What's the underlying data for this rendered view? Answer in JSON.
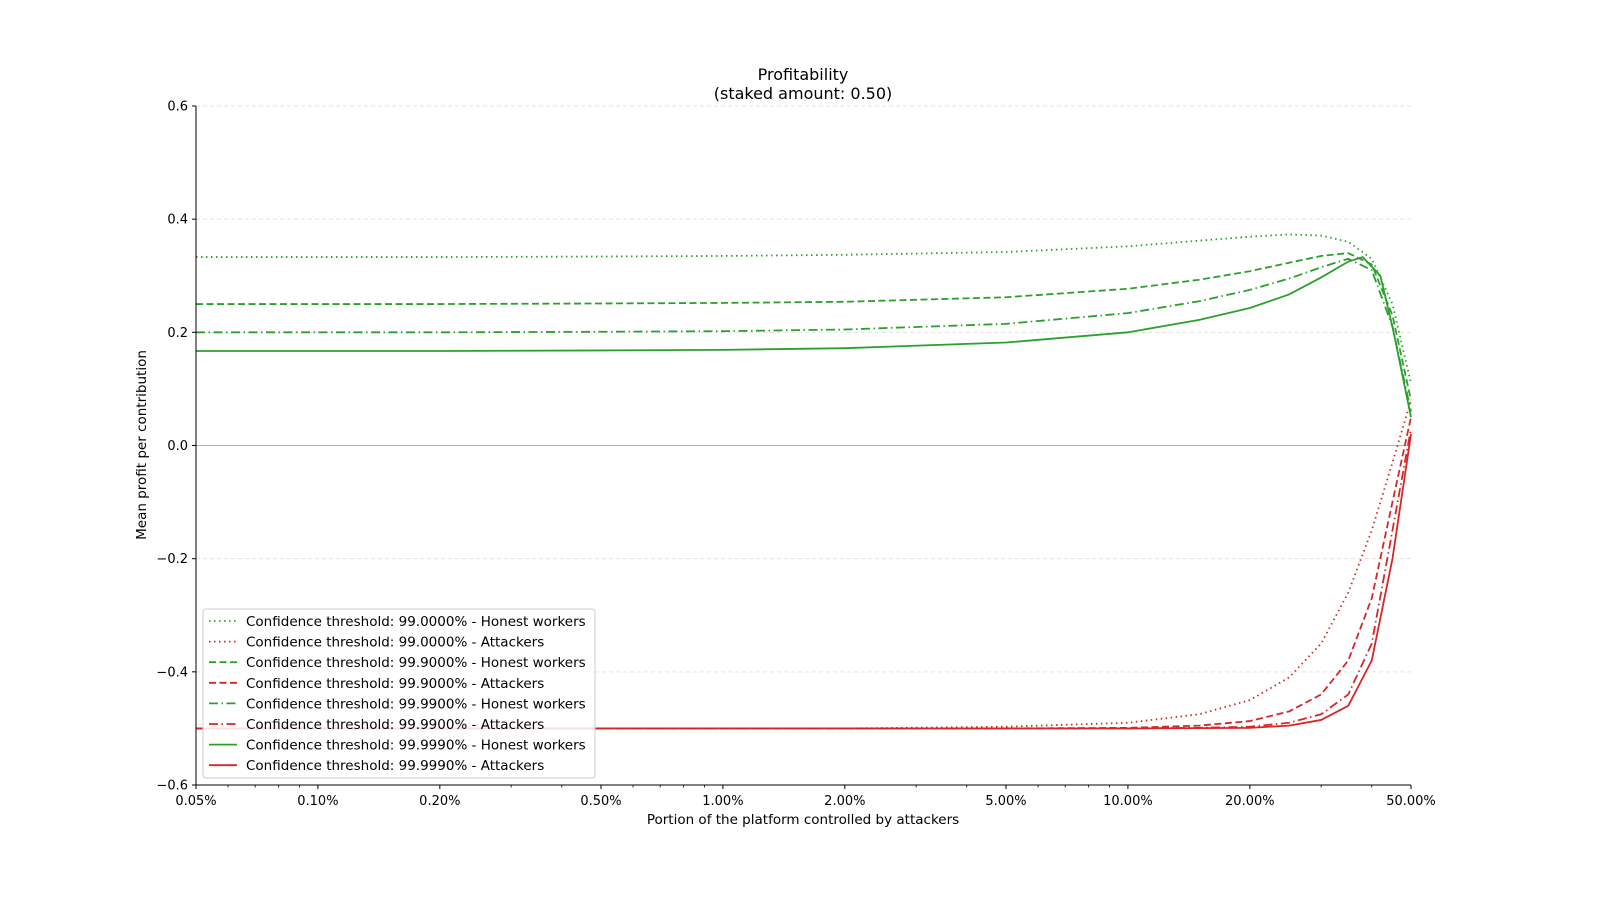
{
  "chart_data": {
    "type": "line",
    "title": "Profitability",
    "subtitle": "(staked amount: 0.50)",
    "xlabel": "Portion of the platform controlled by attackers",
    "ylabel": "Mean profit per contribution",
    "x_scale": "log",
    "xlim": [
      0.0005,
      0.5
    ],
    "ylim": [
      -0.6,
      0.6
    ],
    "grid": "horizontal dashed",
    "legend_position": "lower-left",
    "x_ticks": [
      {
        "value": 0.0005,
        "label": "0.05%"
      },
      {
        "value": 0.001,
        "label": "0.10%"
      },
      {
        "value": 0.002,
        "label": "0.20%"
      },
      {
        "value": 0.005,
        "label": "0.50%"
      },
      {
        "value": 0.01,
        "label": "1.00%"
      },
      {
        "value": 0.02,
        "label": "2.00%"
      },
      {
        "value": 0.05,
        "label": "5.00%"
      },
      {
        "value": 0.1,
        "label": "10.00%"
      },
      {
        "value": 0.2,
        "label": "20.00%"
      },
      {
        "value": 0.5,
        "label": "50.00%"
      }
    ],
    "y_ticks": [
      {
        "value": 0.6,
        "label": "0.6"
      },
      {
        "value": 0.4,
        "label": "0.4"
      },
      {
        "value": 0.2,
        "label": "0.2"
      },
      {
        "value": 0.0,
        "label": "0.0"
      },
      {
        "value": -0.2,
        "label": "−0.2"
      },
      {
        "value": -0.4,
        "label": "−0.4"
      },
      {
        "value": -0.6,
        "label": "−0.6"
      }
    ],
    "colors": {
      "honest": "#2ca02c",
      "attackers": "#d62728"
    },
    "series": [
      {
        "name": "Confidence threshold: 99.0000% - Honest workers",
        "color": "#2ca02c",
        "dash": "dotted",
        "points": [
          [
            0.0005,
            0.333
          ],
          [
            0.001,
            0.333
          ],
          [
            0.002,
            0.333
          ],
          [
            0.005,
            0.334
          ],
          [
            0.01,
            0.335
          ],
          [
            0.02,
            0.337
          ],
          [
            0.05,
            0.342
          ],
          [
            0.1,
            0.352
          ],
          [
            0.15,
            0.362
          ],
          [
            0.2,
            0.369
          ],
          [
            0.25,
            0.373
          ],
          [
            0.3,
            0.371
          ],
          [
            0.35,
            0.36
          ],
          [
            0.4,
            0.33
          ],
          [
            0.45,
            0.25
          ],
          [
            0.5,
            0.11
          ]
        ]
      },
      {
        "name": "Confidence threshold: 99.0000% - Attackers",
        "color": "#d62728",
        "dash": "dotted",
        "points": [
          [
            0.0005,
            -0.5
          ],
          [
            0.001,
            -0.5
          ],
          [
            0.002,
            -0.5
          ],
          [
            0.005,
            -0.5
          ],
          [
            0.01,
            -0.5
          ],
          [
            0.02,
            -0.5
          ],
          [
            0.05,
            -0.497
          ],
          [
            0.1,
            -0.49
          ],
          [
            0.15,
            -0.475
          ],
          [
            0.2,
            -0.45
          ],
          [
            0.25,
            -0.41
          ],
          [
            0.3,
            -0.35
          ],
          [
            0.35,
            -0.26
          ],
          [
            0.4,
            -0.15
          ],
          [
            0.45,
            -0.03
          ],
          [
            0.5,
            0.08
          ]
        ]
      },
      {
        "name": "Confidence threshold: 99.9000% - Honest workers",
        "color": "#2ca02c",
        "dash": "dashed",
        "points": [
          [
            0.0005,
            0.25
          ],
          [
            0.001,
            0.25
          ],
          [
            0.002,
            0.25
          ],
          [
            0.005,
            0.251
          ],
          [
            0.01,
            0.252
          ],
          [
            0.02,
            0.254
          ],
          [
            0.05,
            0.262
          ],
          [
            0.1,
            0.277
          ],
          [
            0.15,
            0.293
          ],
          [
            0.2,
            0.308
          ],
          [
            0.25,
            0.323
          ],
          [
            0.3,
            0.335
          ],
          [
            0.35,
            0.34
          ],
          [
            0.4,
            0.32
          ],
          [
            0.45,
            0.23
          ],
          [
            0.5,
            0.08
          ]
        ]
      },
      {
        "name": "Confidence threshold: 99.9000% - Attackers",
        "color": "#d62728",
        "dash": "dashed",
        "points": [
          [
            0.0005,
            -0.5
          ],
          [
            0.001,
            -0.5
          ],
          [
            0.002,
            -0.5
          ],
          [
            0.005,
            -0.5
          ],
          [
            0.01,
            -0.5
          ],
          [
            0.02,
            -0.5
          ],
          [
            0.05,
            -0.5
          ],
          [
            0.1,
            -0.499
          ],
          [
            0.15,
            -0.495
          ],
          [
            0.2,
            -0.487
          ],
          [
            0.25,
            -0.47
          ],
          [
            0.3,
            -0.44
          ],
          [
            0.35,
            -0.38
          ],
          [
            0.4,
            -0.27
          ],
          [
            0.45,
            -0.1
          ],
          [
            0.5,
            0.05
          ]
        ]
      },
      {
        "name": "Confidence threshold: 99.9900% - Honest workers",
        "color": "#2ca02c",
        "dash": "dashdot",
        "points": [
          [
            0.0005,
            0.2
          ],
          [
            0.001,
            0.2
          ],
          [
            0.002,
            0.2
          ],
          [
            0.005,
            0.201
          ],
          [
            0.01,
            0.202
          ],
          [
            0.02,
            0.205
          ],
          [
            0.05,
            0.215
          ],
          [
            0.1,
            0.234
          ],
          [
            0.15,
            0.255
          ],
          [
            0.2,
            0.275
          ],
          [
            0.25,
            0.295
          ],
          [
            0.3,
            0.315
          ],
          [
            0.35,
            0.33
          ],
          [
            0.4,
            0.31
          ],
          [
            0.45,
            0.21
          ],
          [
            0.5,
            0.06
          ]
        ]
      },
      {
        "name": "Confidence threshold: 99.9900% - Attackers",
        "color": "#d62728",
        "dash": "dashdot",
        "points": [
          [
            0.0005,
            -0.5
          ],
          [
            0.001,
            -0.5
          ],
          [
            0.002,
            -0.5
          ],
          [
            0.005,
            -0.5
          ],
          [
            0.01,
            -0.5
          ],
          [
            0.02,
            -0.5
          ],
          [
            0.05,
            -0.5
          ],
          [
            0.1,
            -0.5
          ],
          [
            0.15,
            -0.499
          ],
          [
            0.2,
            -0.497
          ],
          [
            0.25,
            -0.49
          ],
          [
            0.3,
            -0.475
          ],
          [
            0.35,
            -0.44
          ],
          [
            0.4,
            -0.35
          ],
          [
            0.45,
            -0.15
          ],
          [
            0.5,
            0.03
          ]
        ]
      },
      {
        "name": "Confidence threshold: 99.9990% - Honest workers",
        "color": "#2ca02c",
        "dash": "solid",
        "points": [
          [
            0.0005,
            0.167
          ],
          [
            0.001,
            0.167
          ],
          [
            0.002,
            0.167
          ],
          [
            0.005,
            0.168
          ],
          [
            0.01,
            0.169
          ],
          [
            0.02,
            0.172
          ],
          [
            0.05,
            0.182
          ],
          [
            0.1,
            0.2
          ],
          [
            0.15,
            0.222
          ],
          [
            0.2,
            0.243
          ],
          [
            0.25,
            0.267
          ],
          [
            0.3,
            0.297
          ],
          [
            0.35,
            0.325
          ],
          [
            0.38,
            0.333
          ],
          [
            0.42,
            0.3
          ],
          [
            0.45,
            0.21
          ],
          [
            0.5,
            0.05
          ]
        ]
      },
      {
        "name": "Confidence threshold: 99.9990% - Attackers",
        "color": "#d62728",
        "dash": "solid",
        "points": [
          [
            0.0005,
            -0.5
          ],
          [
            0.001,
            -0.5
          ],
          [
            0.002,
            -0.5
          ],
          [
            0.005,
            -0.5
          ],
          [
            0.01,
            -0.5
          ],
          [
            0.02,
            -0.5
          ],
          [
            0.05,
            -0.5
          ],
          [
            0.1,
            -0.5
          ],
          [
            0.2,
            -0.499
          ],
          [
            0.25,
            -0.495
          ],
          [
            0.3,
            -0.485
          ],
          [
            0.35,
            -0.46
          ],
          [
            0.4,
            -0.38
          ],
          [
            0.45,
            -0.2
          ],
          [
            0.5,
            0.02
          ]
        ]
      }
    ]
  }
}
